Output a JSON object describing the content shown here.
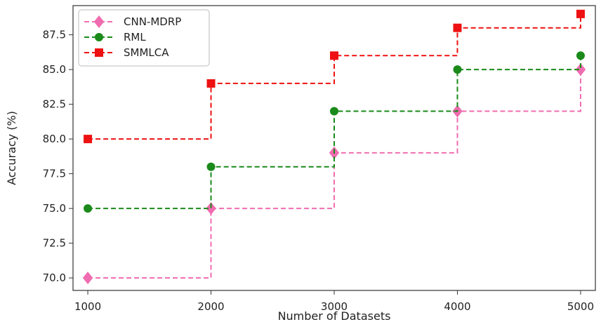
{
  "chart_data": {
    "type": "line",
    "step": "post",
    "x": [
      1000,
      2000,
      3000,
      4000,
      5000
    ],
    "xlabel": "Number of Datasets",
    "ylabel": "Accuracy (%)",
    "xlim": [
      880,
      5120
    ],
    "ylim": [
      69.1,
      89.6
    ],
    "xticks": [
      "1000",
      "2000",
      "3000",
      "4000",
      "5000"
    ],
    "yticks": [
      "70.0",
      "72.5",
      "75.0",
      "77.5",
      "80.0",
      "82.5",
      "85.0",
      "87.5"
    ],
    "grid": false,
    "legend_position": "upper left",
    "series": [
      {
        "name": "CNN-MDRP",
        "values": [
          70,
          75,
          79,
          82,
          85
        ],
        "color": "#f06cb0",
        "marker": "diamond",
        "linestyle": "dashed"
      },
      {
        "name": "RML",
        "values": [
          75,
          78,
          82,
          85,
          86
        ],
        "color": "#1a8a1a",
        "marker": "circle",
        "linestyle": "dashed"
      },
      {
        "name": "SMMLCA",
        "values": [
          80,
          84,
          86,
          88,
          89
        ],
        "color": "#ee1111",
        "marker": "square",
        "linestyle": "dashed"
      }
    ]
  }
}
